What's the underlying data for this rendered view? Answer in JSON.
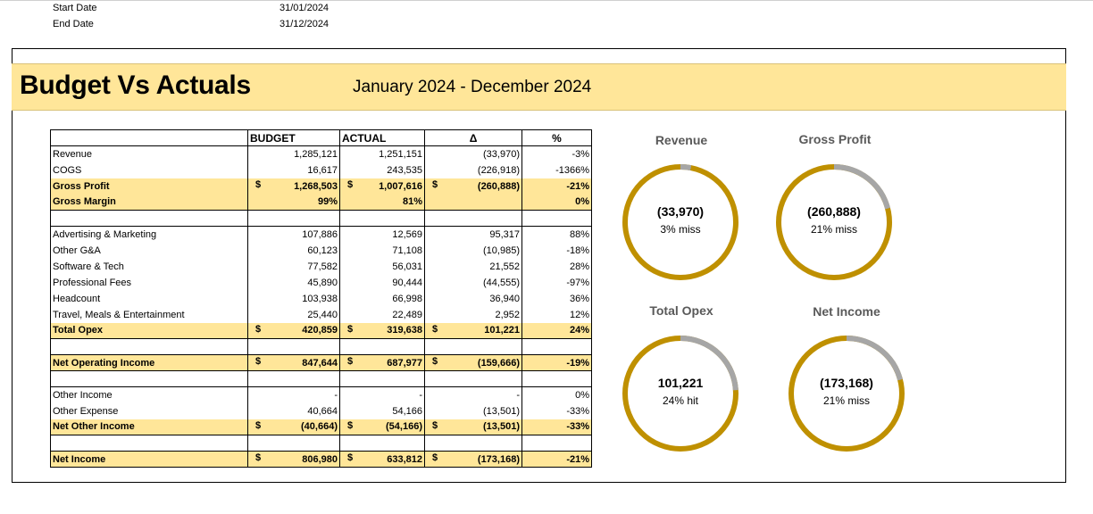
{
  "meta": {
    "start_label": "Start Date",
    "start_value": "31/01/2024",
    "end_label": "End Date",
    "end_value": "31/12/2024"
  },
  "header": {
    "title": "Budget Vs Actuals",
    "period": "January 2024 - December 2024"
  },
  "table": {
    "columns": [
      "",
      "BUDGET",
      "ACTUAL",
      "Δ",
      "%"
    ],
    "rows": [
      {
        "label": "Revenue",
        "budget": "1,285,121",
        "actual": "1,251,151",
        "delta": "(33,970)",
        "pct": "-3%"
      },
      {
        "label": "COGS",
        "budget": "16,617",
        "actual": "243,535",
        "delta": "(226,918)",
        "pct": "-1366%"
      },
      {
        "label": "Gross Profit",
        "budget": "1,268,503",
        "actual": "1,007,616",
        "delta": "(260,888)",
        "pct": "-21%",
        "currency": "$"
      },
      {
        "label": "Gross Margin",
        "budget": "99%",
        "actual": "81%",
        "delta": "",
        "pct": "0%"
      },
      {
        "label": "Advertising & Marketing",
        "budget": "107,886",
        "actual": "12,569",
        "delta": "95,317",
        "pct": "88%"
      },
      {
        "label": "Other G&A",
        "budget": "60,123",
        "actual": "71,108",
        "delta": "(10,985)",
        "pct": "-18%"
      },
      {
        "label": "Software & Tech",
        "budget": "77,582",
        "actual": "56,031",
        "delta": "21,552",
        "pct": "28%"
      },
      {
        "label": "Professional Fees",
        "budget": "45,890",
        "actual": "90,444",
        "delta": "(44,555)",
        "pct": "-97%"
      },
      {
        "label": "Headcount",
        "budget": "103,938",
        "actual": "66,998",
        "delta": "36,940",
        "pct": "36%"
      },
      {
        "label": "Travel, Meals & Entertainment",
        "budget": "25,440",
        "actual": "22,489",
        "delta": "2,952",
        "pct": "12%"
      },
      {
        "label": "Total Opex",
        "budget": "420,859",
        "actual": "319,638",
        "delta": "101,221",
        "pct": "24%",
        "currency": "$"
      },
      {
        "label": "Net Operating Income",
        "budget": "847,644",
        "actual": "687,977",
        "delta": "(159,666)",
        "pct": "-19%",
        "currency": "$"
      },
      {
        "label": "Other Income",
        "budget": "-",
        "actual": "-",
        "delta": "-",
        "pct": "0%"
      },
      {
        "label": "Other Expense",
        "budget": "40,664",
        "actual": "54,166",
        "delta": "(13,501)",
        "pct": "-33%"
      },
      {
        "label": "Net Other Income",
        "budget": "(40,664)",
        "actual": "(54,166)",
        "delta": "(13,501)",
        "pct": "-33%",
        "currency": "$"
      },
      {
        "label": "Net Income",
        "budget": "806,980",
        "actual": "633,812",
        "delta": "(173,168)",
        "pct": "-21%",
        "currency": "$"
      }
    ]
  },
  "kpis": [
    {
      "title": "Revenue",
      "value": "(33,970)",
      "note": "3% miss",
      "fraction": 0.03
    },
    {
      "title": "Gross Profit",
      "value": "(260,888)",
      "note": "21% miss",
      "fraction": 0.21
    },
    {
      "title": "Total Opex",
      "value": "101,221",
      "note": "24% hit",
      "fraction": 0.24
    },
    {
      "title": "Net Income",
      "value": "(173,168)",
      "note": "21% miss",
      "fraction": 0.21
    }
  ],
  "colors": {
    "ring_main": "#bf9000",
    "ring_rest": "#a6a6a6",
    "highlight": "#ffe699"
  }
}
